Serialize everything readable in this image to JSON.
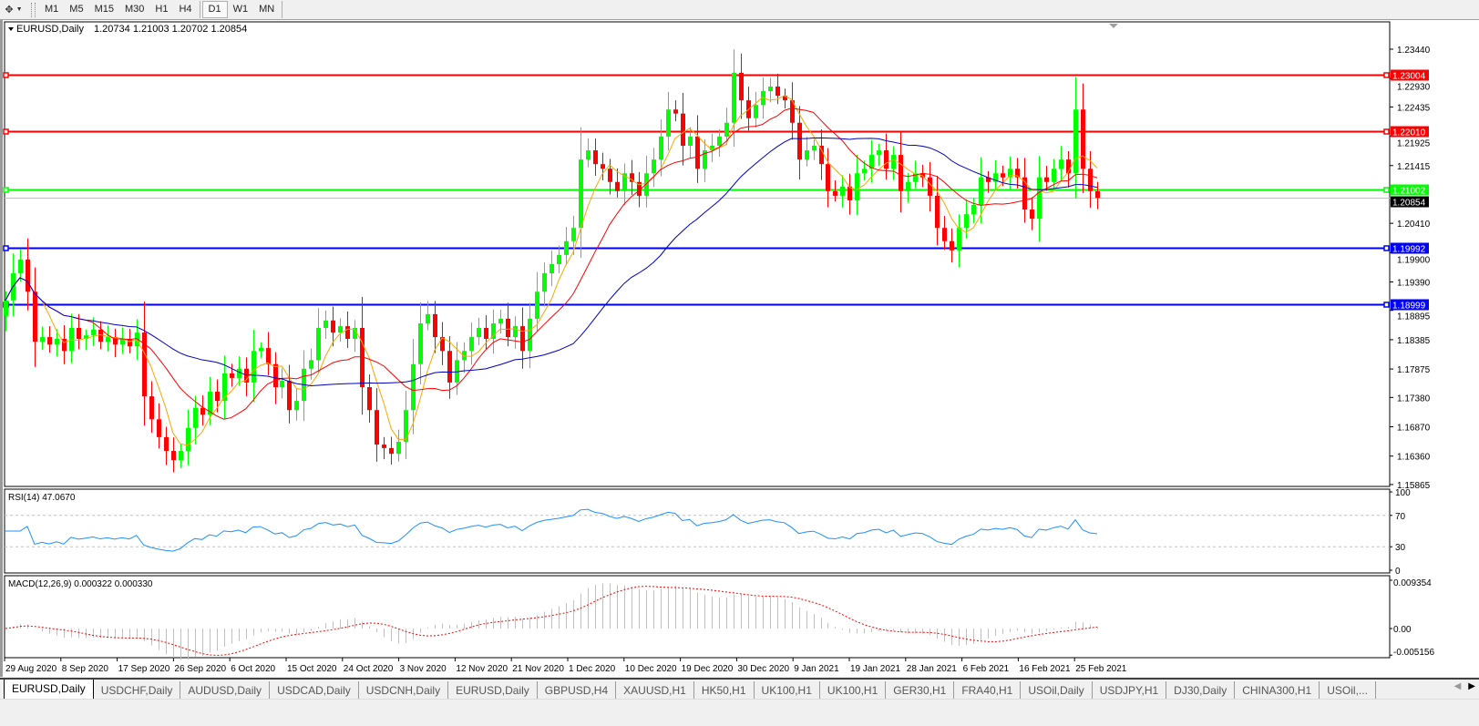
{
  "toolbar": {
    "timeframes": [
      "M1",
      "M5",
      "M15",
      "M30",
      "H1",
      "H4",
      "D1",
      "W1",
      "MN"
    ],
    "active_timeframe": "D1"
  },
  "chart": {
    "header": "EURUSD,Daily",
    "ohlc": "1.20734 1.21003 1.20702 1.20854",
    "current_price": "1.20854",
    "price_ticks": [
      "1.23440",
      "1.22930",
      "1.22435",
      "1.21925",
      "1.21415",
      "1.20410",
      "1.19900",
      "1.19390",
      "1.18895",
      "1.18385",
      "1.17875",
      "1.17380",
      "1.16870",
      "1.16360",
      "1.15865"
    ],
    "levels": [
      {
        "price": "1.23004",
        "color": "#ff0000"
      },
      {
        "price": "1.22010",
        "color": "#ff0000"
      },
      {
        "price": "1.21002",
        "color": "#00ff00"
      },
      {
        "price": "1.19992",
        "color": "#0000ff"
      },
      {
        "price": "1.18999",
        "color": "#0000ff"
      }
    ],
    "colors": {
      "up": "#00ff00",
      "down": "#ff0000",
      "ma_fast": "#ffa500",
      "ma_mid": "#ff0000",
      "ma_slow": "#0000c0",
      "rsi": "#1e90ff",
      "macd_hist": "#c0c0c0",
      "macd_signal": "#ff0000"
    },
    "date_labels": [
      "29 Aug 2020",
      "8 Sep 2020",
      "17 Sep 2020",
      "26 Sep 2020",
      "6 Oct 2020",
      "15 Oct 2020",
      "24 Oct 2020",
      "3 Nov 2020",
      "12 Nov 2020",
      "21 Nov 2020",
      "1 Dec 2020",
      "10 Dec 2020",
      "19 Dec 2020",
      "30 Dec 2020",
      "9 Jan 2021",
      "19 Jan 2021",
      "28 Jan 2021",
      "6 Feb 2021",
      "16 Feb 2021",
      "25 Feb 2021"
    ]
  },
  "rsi": {
    "label": "RSI(14) 47.0670",
    "ticks": [
      "100",
      "70",
      "30",
      "0"
    ]
  },
  "macd": {
    "label": "MACD(12,26,9) 0.000322 0.000330",
    "ticks": [
      "0.009354",
      "0.00",
      "-0.005156"
    ],
    "range": [
      -0.005156,
      0.009354
    ]
  },
  "chart_data": {
    "type": "candlestick",
    "symbol": "EURUSD",
    "timeframe": "Daily",
    "ylim": [
      1.15865,
      1.2344
    ],
    "first_open": 1.188,
    "close": [
      1.1907,
      1.1954,
      1.1978,
      1.1922,
      1.1835,
      1.1843,
      1.183,
      1.184,
      1.1819,
      1.1859,
      1.184,
      1.1846,
      1.1856,
      1.1835,
      1.1843,
      1.183,
      1.184,
      1.1827,
      1.1851,
      1.174,
      1.17,
      1.1669,
      1.1645,
      1.1629,
      1.1645,
      1.1685,
      1.172,
      1.1708,
      1.1748,
      1.1732,
      1.178,
      1.1772,
      1.1788,
      1.1764,
      1.1819,
      1.1824,
      1.1796,
      1.1756,
      1.1767,
      1.1716,
      1.1732,
      1.1788,
      1.1803,
      1.1859,
      1.1872,
      1.1851,
      1.1862,
      1.184,
      1.1859,
      1.1756,
      1.1716,
      1.1656,
      1.165,
      1.164,
      1.1661,
      1.1716,
      1.1796,
      1.1867,
      1.1883,
      1.1843,
      1.1819,
      1.1764,
      1.1803,
      1.1819,
      1.1843,
      1.1859,
      1.184,
      1.1867,
      1.1875,
      1.1843,
      1.1862,
      1.1819,
      1.1875,
      1.1922,
      1.1954,
      1.197,
      1.1986,
      1.201,
      1.2033,
      1.2152,
      1.2168,
      1.2144,
      1.2136,
      1.2113,
      1.2097,
      1.2128,
      1.2113,
      1.2089,
      1.2128,
      1.2152,
      1.2192,
      1.2239,
      1.2232,
      1.2176,
      1.2192,
      1.2136,
      1.2168,
      1.2176,
      1.2192,
      1.2216,
      1.2303,
      1.2255,
      1.2224,
      1.2247,
      1.2271,
      1.2279,
      1.2263,
      1.2255,
      1.2216,
      1.2152,
      1.2168,
      1.2176,
      1.2144,
      1.2097,
      1.2089,
      1.2105,
      1.2081,
      1.2128,
      1.2136,
      1.216,
      1.2168,
      1.2136,
      1.216,
      1.2097,
      1.2113,
      1.2128,
      1.2121,
      1.2089,
      1.2033,
      1.201,
      1.1994,
      1.2033,
      1.2057,
      1.2073,
      1.2121,
      1.2113,
      1.2128,
      1.2121,
      1.2136,
      1.2121,
      1.2065,
      1.2049,
      1.2121,
      1.2113,
      1.2136,
      1.2152,
      1.2128,
      1.2239,
      1.2136,
      1.2097,
      1.20854
    ]
  }
}
